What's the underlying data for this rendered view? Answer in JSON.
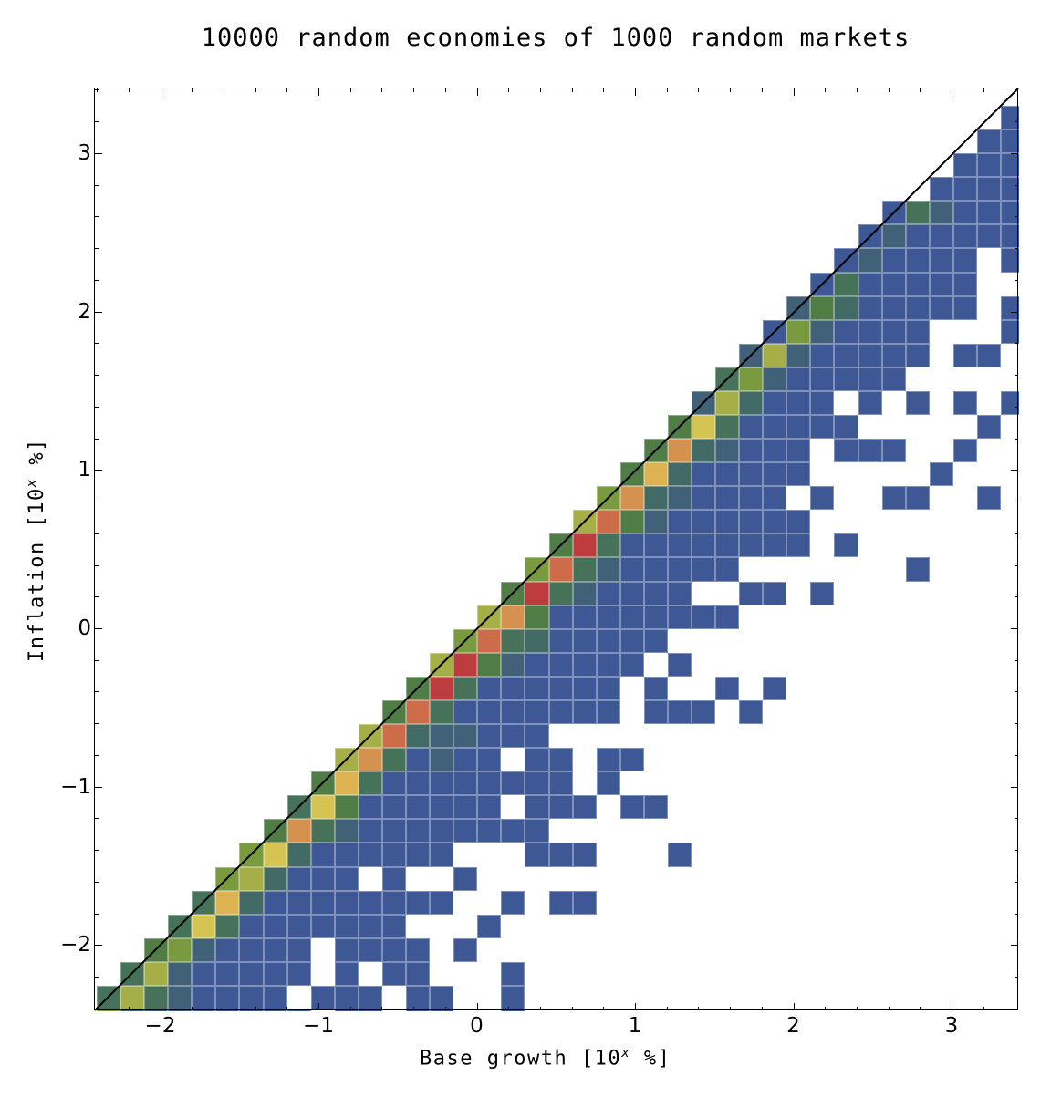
{
  "chart_data": {
    "type": "heatmap",
    "title": "10000 random economies of 1000 random markets",
    "xlabel": "Base growth [10^x %]",
    "ylabel": "Inflation [10^x %]",
    "xlabel_parts": {
      "pre": "Base growth [10",
      "sup": "x",
      "post": " %]"
    },
    "ylabel_parts": {
      "pre": "Inflation [10",
      "sup": "x",
      "post": " %]"
    },
    "xlim": [
      -2.42,
      3.42
    ],
    "ylim": [
      -2.42,
      3.42
    ],
    "x_ticks": [
      {
        "label": "−2",
        "value": -2
      },
      {
        "label": "−1",
        "value": -1
      },
      {
        "label": "0",
        "value": 0
      },
      {
        "label": "1",
        "value": 1
      },
      {
        "label": "2",
        "value": 2
      },
      {
        "label": "3",
        "value": 3
      }
    ],
    "y_ticks": [
      {
        "label": "−2",
        "value": -2
      },
      {
        "label": "−1",
        "value": -1
      },
      {
        "label": "0",
        "value": 0
      },
      {
        "label": "1",
        "value": 1
      },
      {
        "label": "2",
        "value": 2
      },
      {
        "label": "3",
        "value": 3
      }
    ],
    "reference_line": {
      "type": "y=x",
      "color": "#000000"
    },
    "grid": false,
    "legend": null,
    "bin_width": 0.15,
    "color_scale": {
      ".": "#ffffff",
      "B": "#3d5894",
      "T": "#416178",
      "t": "#436b66",
      "G": "#47725a",
      "g": "#4f7d45",
      "o": "#7a9a40",
      "y": "#a6ae48",
      "Y": "#d5c451",
      "A": "#ddb352",
      "O": "#d5924f",
      "R": "#cc6c48",
      "r": "#bd3c3d"
    },
    "color_scale_order_low_to_high": [
      "B",
      "T",
      "t",
      "G",
      "g",
      "o",
      "y",
      "Y",
      "A",
      "O",
      "R",
      "r"
    ],
    "rows_bottom_to_top": [
      "GyGTBBBB.BBB.BB..B",
      ".GyTBBBBB.B.BB...B",
      "..goTBBBB.BBBB.B",
      "...GYGBBBBBBB...B",
      "....GAtBBBBBBBB..B.BB",
      ".....oytBBB.B..B",
      "......oYtBBBBBB...BBB...B",
      ".......gOGTBBBBBBBB",
      "........GYgBBBBBB.BBB.BB",
      ".........gAGBBBBBBBB.B",
      "..........yOGBTBB.BB.BB",
      "...........yRtTTBBB",
      "............gRGBBBBBBB.BBB.B",
      ".............grGBBBBBB.B..B.B",
      "..............yrgTBBBBB.B",
      "...............oRGtBBBBB",
      "................yOgBBBBBBBB",
      ".................grGTBBBB..BB.B",
      "..................oRGTBBBBB.......B",
      "...................grGBBBBBBBB.B",
      "....................yRgTBBBBBB",
      ".....................oOtTBBBB.B..BB..B",
      "......................gAtBBBBB.....B",
      ".......................gOtTBBB.BBB..B",
      "........................gYGBBBBB.....B",
      ".........................TytBBB.B.B.B.B",
      "..........................GoTBBBBB",
      "...........................TyTBBBBB.BB.",
      "............................BoTBBBB...B",
      ".............................TgtBBBBB.B",
      "..............................BGBBBBB..",
      "...............................BTBBBB.B",
      "................................BTBBBBB",
      ".................................BGTBBB",
      "...................................BBBB",
      "....................................BBB",
      ".....................................BB",
      "......................................B"
    ],
    "partial_bottom_row": "oTBBBBBBB.BB.BB..B"
  }
}
